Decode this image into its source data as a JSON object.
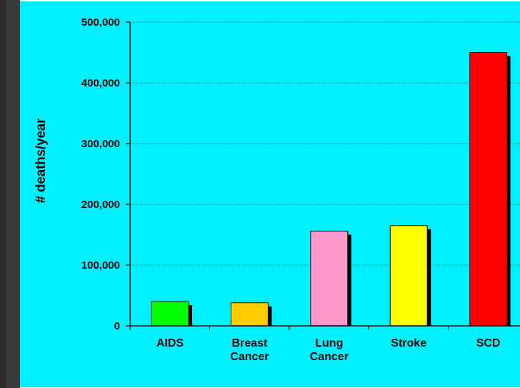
{
  "chart_data": {
    "type": "bar",
    "title": "",
    "xlabel": "",
    "ylabel": "# deaths/year",
    "categories": [
      [
        "AIDS"
      ],
      [
        "Breast",
        "Cancer"
      ],
      [
        "Lung",
        "Cancer"
      ],
      [
        "Stroke"
      ],
      [
        "SCD"
      ]
    ],
    "values": [
      40000,
      38000,
      156000,
      165000,
      450000
    ],
    "colors": [
      "#00ff00",
      "#ffcc00",
      "#ff99cc",
      "#ffff00",
      "#ff0000"
    ],
    "ylim": [
      0,
      500000
    ],
    "yticks": [
      0,
      100000,
      200000,
      300000,
      400000,
      500000
    ],
    "ytick_labels": [
      "0",
      "100,000",
      "200,000",
      "300,000",
      "400,000",
      "500,000"
    ],
    "grid": true,
    "background": "#00f0ff"
  }
}
